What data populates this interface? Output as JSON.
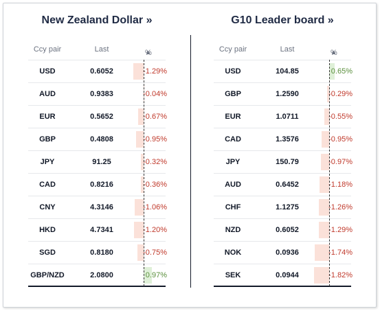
{
  "left": {
    "title": "New Zealand Dollar »",
    "headers": {
      "pair": "Ccy pair",
      "last": "Last",
      "pct": "%",
      "sort": "▲"
    },
    "rows": [
      {
        "pair": "USD",
        "last": "0.6052",
        "pct": "-1.29%",
        "value": -1.29
      },
      {
        "pair": "AUD",
        "last": "0.9383",
        "pct": "-0.04%",
        "value": -0.04
      },
      {
        "pair": "EUR",
        "last": "0.5652",
        "pct": "-0.67%",
        "value": -0.67
      },
      {
        "pair": "GBP",
        "last": "0.4808",
        "pct": "-0.95%",
        "value": -0.95
      },
      {
        "pair": "JPY",
        "last": "91.25",
        "pct": "-0.32%",
        "value": -0.32
      },
      {
        "pair": "CAD",
        "last": "0.8216",
        "pct": "-0.36%",
        "value": -0.36
      },
      {
        "pair": "CNY",
        "last": "4.3146",
        "pct": "-1.06%",
        "value": -1.06
      },
      {
        "pair": "HKD",
        "last": "4.7341",
        "pct": "-1.20%",
        "value": -1.2
      },
      {
        "pair": "SGD",
        "last": "0.8180",
        "pct": "-0.75%",
        "value": -0.75
      },
      {
        "pair": "GBP/NZD",
        "last": "2.0800",
        "pct": "0.97%",
        "value": 0.97
      }
    ]
  },
  "right": {
    "title": "G10 Leader board »",
    "headers": {
      "pair": "Ccy pair",
      "last": "Last",
      "pct": "%",
      "sort": "▲"
    },
    "rows": [
      {
        "pair": "USD",
        "last": "104.85",
        "pct": "0.65%",
        "value": 0.65
      },
      {
        "pair": "GBP",
        "last": "1.2590",
        "pct": "-0.29%",
        "value": -0.29
      },
      {
        "pair": "EUR",
        "last": "1.0711",
        "pct": "-0.55%",
        "value": -0.55
      },
      {
        "pair": "CAD",
        "last": "1.3576",
        "pct": "-0.95%",
        "value": -0.95
      },
      {
        "pair": "JPY",
        "last": "150.79",
        "pct": "-0.97%",
        "value": -0.97
      },
      {
        "pair": "AUD",
        "last": "0.6452",
        "pct": "-1.18%",
        "value": -1.18
      },
      {
        "pair": "CHF",
        "last": "1.1275",
        "pct": "-1.26%",
        "value": -1.26
      },
      {
        "pair": "NZD",
        "last": "0.6052",
        "pct": "-1.29%",
        "value": -1.29
      },
      {
        "pair": "NOK",
        "last": "0.0936",
        "pct": "-1.74%",
        "value": -1.74
      },
      {
        "pair": "SEK",
        "last": "0.0944",
        "pct": "-1.82%",
        "value": -1.82
      }
    ]
  },
  "colors": {
    "negative_text": "#c0392b",
    "positive_text": "#5a8f3c",
    "negative_bar": "#fbe1d9",
    "positive_bar": "#dff0d8",
    "title": "#1f2a44"
  }
}
